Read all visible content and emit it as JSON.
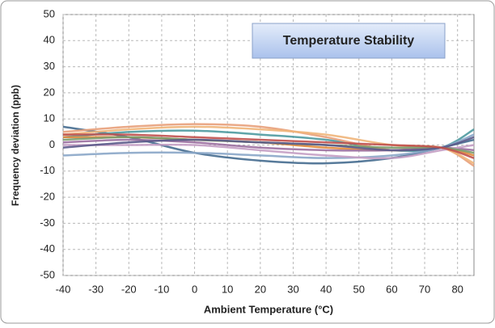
{
  "chart_data": {
    "type": "line",
    "title": "Temperature Stability",
    "x_label": "Ambient Temperature (°C)",
    "y_label": "Frequency deviation  (ppb)",
    "x": [
      -40,
      -20,
      0,
      20,
      40,
      60,
      75,
      85
    ],
    "series": [
      {
        "color": "#456b8f",
        "values": [
          7,
          3,
          -3,
          -6,
          -7,
          -5,
          -1,
          2
        ]
      },
      {
        "color": "#4e9aa0",
        "values": [
          3,
          5,
          5.5,
          4,
          2,
          -2,
          -1,
          6
        ]
      },
      {
        "color": "#8aa6c8",
        "values": [
          -4,
          -3,
          -3,
          -4,
          -5,
          -4,
          -1,
          4
        ]
      },
      {
        "color": "#e8a07a",
        "values": [
          5,
          7,
          8,
          7,
          3,
          -2,
          -1,
          -8
        ]
      },
      {
        "color": "#f0b57a",
        "values": [
          4,
          6,
          7,
          6,
          4,
          0,
          -1,
          -7
        ]
      },
      {
        "color": "#e08a3c",
        "values": [
          3,
          3,
          2,
          1,
          -1,
          -2,
          -1,
          -4
        ]
      },
      {
        "color": "#9b6fa0",
        "values": [
          1,
          2,
          1,
          -1,
          -2,
          -2,
          -1,
          -2
        ]
      },
      {
        "color": "#c49fc4",
        "values": [
          0,
          0,
          0,
          -2,
          -4,
          -5,
          -2,
          0
        ]
      },
      {
        "color": "#7a9a6a",
        "values": [
          2,
          3,
          2,
          1,
          0,
          -1,
          -1,
          -3
        ]
      },
      {
        "color": "#5a5a8a",
        "values": [
          -1,
          1,
          2,
          1,
          0,
          -2,
          -1,
          3
        ]
      },
      {
        "color": "#c0504d",
        "values": [
          4,
          4,
          3,
          2,
          1,
          0,
          -1,
          -5
        ]
      }
    ],
    "xlim": [
      -40,
      85
    ],
    "xticks": [
      -40,
      -30,
      -20,
      -10,
      0,
      10,
      20,
      30,
      40,
      50,
      60,
      70,
      80
    ],
    "ylim": [
      -50,
      50
    ],
    "yticks": [
      -50,
      -40,
      -30,
      -20,
      -10,
      0,
      10,
      20,
      30,
      40,
      50
    ],
    "grid": true
  }
}
